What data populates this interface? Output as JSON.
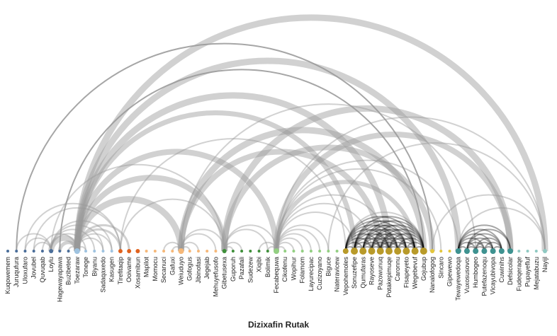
{
  "title": "Dizixafin Rutak",
  "colors": {
    "arc_heavy": "#000000",
    "arc_light": "#999999",
    "groups": {
      "g1": "#4a6d99",
      "g2": "#9fc3e0",
      "g3": "#e0621e",
      "g4": "#f6b879",
      "g5": "#3f8f3a",
      "g6": "#93cf82",
      "g7": "#b89a2a",
      "g8": "#e3c63c",
      "g9": "#3e9290",
      "g10": "#8fc9c2"
    }
  },
  "nodes": [
    {
      "label": "Kuqowemem",
      "group": "g1",
      "size": 2
    },
    {
      "label": "Juruqufura",
      "group": "g1",
      "size": 2
    },
    {
      "label": "Uloxufaro",
      "group": "g1",
      "size": 2
    },
    {
      "label": "Jovubel",
      "group": "g1",
      "size": 2
    },
    {
      "label": "Quvuqab",
      "group": "g1",
      "size": 2
    },
    {
      "label": "Loylu",
      "group": "g1",
      "size": 3
    },
    {
      "label": "Hagewayapawa",
      "group": "g1",
      "size": 2
    },
    {
      "label": "Buzibeted",
      "group": "g1",
      "size": 2
    },
    {
      "label": "Toezaraw",
      "group": "g2",
      "size": 4
    },
    {
      "label": "Tonege",
      "group": "g2",
      "size": 2
    },
    {
      "label": "Biyanu",
      "group": "g2",
      "size": 2
    },
    {
      "label": "Sadaqaxedo",
      "group": "g2",
      "size": 2
    },
    {
      "label": "Kasugen",
      "group": "g2",
      "size": 2
    },
    {
      "label": "Tirefitaqip",
      "group": "g3",
      "size": 3
    },
    {
      "label": "Ooivame",
      "group": "g3",
      "size": 3
    },
    {
      "label": "Xosamibun",
      "group": "g3",
      "size": 3
    },
    {
      "label": "Mapilot",
      "group": "g4",
      "size": 2
    },
    {
      "label": "Momocu",
      "group": "g4",
      "size": 2
    },
    {
      "label": "Secanuci",
      "group": "g4",
      "size": 2
    },
    {
      "label": "Gafuxi",
      "group": "g4",
      "size": 2
    },
    {
      "label": "Weiuduyo",
      "group": "g4",
      "size": 4
    },
    {
      "label": "Gofogus",
      "group": "g4",
      "size": 2
    },
    {
      "label": "Jibinofasi",
      "group": "g4",
      "size": 2
    },
    {
      "label": "Jegejab",
      "group": "g4",
      "size": 2
    },
    {
      "label": "Mehuyefusofo",
      "group": "g4",
      "size": 2
    },
    {
      "label": "Gibetusexa",
      "group": "g5",
      "size": 3
    },
    {
      "label": "Guporuh",
      "group": "g5",
      "size": 2
    },
    {
      "label": "Pazafali",
      "group": "g5",
      "size": 2
    },
    {
      "label": "Sudezew",
      "group": "g5",
      "size": 2
    },
    {
      "label": "Xiqibi",
      "group": "g5",
      "size": 2
    },
    {
      "label": "Bolimik",
      "group": "g5",
      "size": 2
    },
    {
      "label": "Fecabequwa",
      "group": "g6",
      "size": 4
    },
    {
      "label": "Cikofenu",
      "group": "g6",
      "size": 2
    },
    {
      "label": "Wopihur",
      "group": "g6",
      "size": 2
    },
    {
      "label": "Folamom",
      "group": "g6",
      "size": 2
    },
    {
      "label": "Layurecipac",
      "group": "g6",
      "size": 2
    },
    {
      "label": "Cuzizoyano",
      "group": "g6",
      "size": 2
    },
    {
      "label": "Biguce",
      "group": "g6",
      "size": 2
    },
    {
      "label": "Nateravicew",
      "group": "g6",
      "size": 2
    },
    {
      "label": "Vepohemoles",
      "group": "g7",
      "size": 4
    },
    {
      "label": "Sonuzefipe",
      "group": "g7",
      "size": 5
    },
    {
      "label": "Qumufaras",
      "group": "g7",
      "size": 5
    },
    {
      "label": "Rayoseve",
      "group": "g7",
      "size": 5
    },
    {
      "label": "Pazowunuq",
      "group": "g7",
      "size": 5
    },
    {
      "label": "Potakepimuqe",
      "group": "g7",
      "size": 5
    },
    {
      "label": "Caronnu",
      "group": "g7",
      "size": 5
    },
    {
      "label": "Fisapeyeto",
      "group": "g7",
      "size": 5
    },
    {
      "label": "Wegebevuf",
      "group": "g7",
      "size": 5
    },
    {
      "label": "Gojubup",
      "group": "g7",
      "size": 5
    },
    {
      "label": "Nanalofogog",
      "group": "g8",
      "size": 3
    },
    {
      "label": "Sincaro",
      "group": "g8",
      "size": 2
    },
    {
      "label": "Gipewewo",
      "group": "g8",
      "size": 2
    },
    {
      "label": "Tewayewedoqa",
      "group": "g9",
      "size": 4
    },
    {
      "label": "Vuxosusovor",
      "group": "g9",
      "size": 4
    },
    {
      "label": "Humbogeo",
      "group": "g9",
      "size": 4
    },
    {
      "label": "Putefazenoqu",
      "group": "g9",
      "size": 4
    },
    {
      "label": "Vicayubivopa",
      "group": "g9",
      "size": 4
    },
    {
      "label": "Cuwinihs",
      "group": "g9",
      "size": 4
    },
    {
      "label": "Defsicolar",
      "group": "g9",
      "size": 4
    },
    {
      "label": "Fudeqeraqe",
      "group": "g10",
      "size": 2
    },
    {
      "label": "Pupayefluf",
      "group": "g10",
      "size": 2
    },
    {
      "label": "Mejatabuzu",
      "group": "g10",
      "size": 2
    },
    {
      "label": "Nayijl",
      "group": "g10",
      "size": 3
    }
  ],
  "links": [
    {
      "source": 1,
      "target": 49,
      "value": 2,
      "tone": "heavy"
    },
    {
      "source": 6,
      "target": 48,
      "value": 2,
      "tone": "heavy"
    },
    {
      "source": 8,
      "target": 62,
      "value": 9,
      "tone": "light"
    },
    {
      "source": 8,
      "target": 52,
      "value": 9,
      "tone": "light"
    },
    {
      "source": 8,
      "target": 44,
      "value": 9,
      "tone": "light"
    },
    {
      "source": 8,
      "target": 40,
      "value": 7,
      "tone": "light"
    },
    {
      "source": 8,
      "target": 31,
      "value": 8,
      "tone": "light"
    },
    {
      "source": 8,
      "target": 25,
      "value": 8,
      "tone": "light"
    },
    {
      "source": 8,
      "target": 20,
      "value": 9,
      "tone": "light"
    },
    {
      "source": 8,
      "target": 13,
      "value": 3,
      "tone": "light"
    },
    {
      "source": 8,
      "target": 14,
      "value": 3,
      "tone": "light"
    },
    {
      "source": 6,
      "target": 8,
      "value": 5,
      "tone": "light"
    },
    {
      "source": 5,
      "target": 8,
      "value": 8,
      "tone": "light"
    },
    {
      "source": 4,
      "target": 8,
      "value": 2,
      "tone": "light"
    },
    {
      "source": 2,
      "target": 5,
      "value": 2,
      "tone": "light"
    },
    {
      "source": 3,
      "target": 5,
      "value": 2,
      "tone": "light"
    },
    {
      "source": 1,
      "target": 5,
      "value": 2,
      "tone": "light"
    },
    {
      "source": 5,
      "target": 9,
      "value": 2,
      "tone": "light"
    },
    {
      "source": 5,
      "target": 10,
      "value": 2,
      "tone": "light"
    },
    {
      "source": 5,
      "target": 11,
      "value": 2,
      "tone": "light"
    },
    {
      "source": 5,
      "target": 12,
      "value": 2,
      "tone": "light"
    },
    {
      "source": 5,
      "target": 25,
      "value": 2,
      "tone": "light"
    },
    {
      "source": 7,
      "target": 8,
      "value": 2,
      "tone": "light"
    },
    {
      "source": 8,
      "target": 9,
      "value": 2,
      "tone": "light"
    },
    {
      "source": 8,
      "target": 11,
      "value": 2,
      "tone": "light"
    },
    {
      "source": 8,
      "target": 12,
      "value": 2,
      "tone": "light"
    },
    {
      "source": 13,
      "target": 25,
      "value": 2,
      "tone": "light"
    },
    {
      "source": 13,
      "target": 39,
      "value": 2,
      "tone": "light"
    },
    {
      "source": 20,
      "target": 43,
      "value": 8,
      "tone": "light"
    },
    {
      "source": 20,
      "target": 48,
      "value": 9,
      "tone": "light"
    },
    {
      "source": 20,
      "target": 54,
      "value": 2,
      "tone": "light"
    },
    {
      "source": 18,
      "target": 20,
      "value": 2,
      "tone": "light"
    },
    {
      "source": 19,
      "target": 20,
      "value": 2,
      "tone": "light"
    },
    {
      "source": 20,
      "target": 21,
      "value": 2,
      "tone": "light"
    },
    {
      "source": 20,
      "target": 22,
      "value": 2,
      "tone": "light"
    },
    {
      "source": 20,
      "target": 24,
      "value": 2,
      "tone": "light"
    },
    {
      "source": 20,
      "target": 25,
      "value": 2,
      "tone": "light"
    },
    {
      "source": 25,
      "target": 49,
      "value": 8,
      "tone": "light"
    },
    {
      "source": 25,
      "target": 58,
      "value": 9,
      "tone": "light"
    },
    {
      "source": 25,
      "target": 26,
      "value": 2,
      "tone": "light"
    },
    {
      "source": 25,
      "target": 27,
      "value": 2,
      "tone": "light"
    },
    {
      "source": 25,
      "target": 30,
      "value": 2,
      "tone": "light"
    },
    {
      "source": 25,
      "target": 31,
      "value": 2,
      "tone": "light"
    },
    {
      "source": 31,
      "target": 58,
      "value": 8,
      "tone": "light"
    },
    {
      "source": 31,
      "target": 47,
      "value": 6,
      "tone": "light"
    },
    {
      "source": 31,
      "target": 52,
      "value": 2,
      "tone": "light"
    },
    {
      "source": 31,
      "target": 62,
      "value": 2,
      "tone": "light"
    },
    {
      "source": 31,
      "target": 50,
      "value": 2,
      "tone": "light"
    },
    {
      "source": 29,
      "target": 31,
      "value": 2,
      "tone": "light"
    },
    {
      "source": 30,
      "target": 31,
      "value": 2,
      "tone": "light"
    },
    {
      "source": 31,
      "target": 32,
      "value": 2,
      "tone": "light"
    },
    {
      "source": 31,
      "target": 33,
      "value": 2,
      "tone": "light"
    },
    {
      "source": 31,
      "target": 34,
      "value": 2,
      "tone": "light"
    },
    {
      "source": 31,
      "target": 35,
      "value": 2,
      "tone": "light"
    },
    {
      "source": 31,
      "target": 36,
      "value": 2,
      "tone": "light"
    },
    {
      "source": 31,
      "target": 37,
      "value": 2,
      "tone": "light"
    },
    {
      "source": 31,
      "target": 40,
      "value": 2,
      "tone": "light"
    },
    {
      "source": 31,
      "target": 42,
      "value": 2,
      "tone": "light"
    },
    {
      "source": 31,
      "target": 44,
      "value": 2,
      "tone": "light"
    },
    {
      "source": 37,
      "target": 62,
      "value": 2,
      "tone": "light"
    },
    {
      "source": 39,
      "target": 48,
      "value": 2,
      "tone": "light"
    },
    {
      "source": 49,
      "target": 62,
      "value": 2,
      "tone": "light"
    },
    {
      "source": 52,
      "target": 62,
      "value": 2,
      "tone": "light"
    },
    {
      "source": 2,
      "target": 13,
      "value": 2,
      "tone": "light"
    },
    {
      "source": 3,
      "target": 13,
      "value": 2,
      "tone": "light"
    },
    {
      "source": 39,
      "target": 40,
      "value": 2,
      "tone": "heavy"
    },
    {
      "source": 39,
      "target": 41,
      "value": 2,
      "tone": "heavy"
    },
    {
      "source": 39,
      "target": 42,
      "value": 2,
      "tone": "heavy"
    },
    {
      "source": 39,
      "target": 43,
      "value": 2,
      "tone": "heavy"
    },
    {
      "source": 39,
      "target": 44,
      "value": 2,
      "tone": "heavy"
    },
    {
      "source": 39,
      "target": 45,
      "value": 2,
      "tone": "heavy"
    },
    {
      "source": 39,
      "target": 46,
      "value": 2,
      "tone": "heavy"
    },
    {
      "source": 39,
      "target": 47,
      "value": 2,
      "tone": "heavy"
    },
    {
      "source": 40,
      "target": 41,
      "value": 2,
      "tone": "heavy"
    },
    {
      "source": 40,
      "target": 42,
      "value": 2,
      "tone": "heavy"
    },
    {
      "source": 40,
      "target": 43,
      "value": 2,
      "tone": "heavy"
    },
    {
      "source": 40,
      "target": 44,
      "value": 2,
      "tone": "heavy"
    },
    {
      "source": 40,
      "target": 45,
      "value": 2,
      "tone": "heavy"
    },
    {
      "source": 40,
      "target": 46,
      "value": 2,
      "tone": "heavy"
    },
    {
      "source": 40,
      "target": 47,
      "value": 2,
      "tone": "heavy"
    },
    {
      "source": 40,
      "target": 48,
      "value": 2,
      "tone": "heavy"
    },
    {
      "source": 41,
      "target": 42,
      "value": 2,
      "tone": "heavy"
    },
    {
      "source": 41,
      "target": 43,
      "value": 2,
      "tone": "heavy"
    },
    {
      "source": 41,
      "target": 44,
      "value": 2,
      "tone": "heavy"
    },
    {
      "source": 41,
      "target": 45,
      "value": 2,
      "tone": "heavy"
    },
    {
      "source": 41,
      "target": 46,
      "value": 2,
      "tone": "heavy"
    },
    {
      "source": 41,
      "target": 47,
      "value": 2,
      "tone": "heavy"
    },
    {
      "source": 41,
      "target": 48,
      "value": 2,
      "tone": "heavy"
    },
    {
      "source": 42,
      "target": 43,
      "value": 2,
      "tone": "heavy"
    },
    {
      "source": 42,
      "target": 44,
      "value": 2,
      "tone": "heavy"
    },
    {
      "source": 42,
      "target": 45,
      "value": 2,
      "tone": "heavy"
    },
    {
      "source": 42,
      "target": 46,
      "value": 2,
      "tone": "heavy"
    },
    {
      "source": 42,
      "target": 47,
      "value": 2,
      "tone": "heavy"
    },
    {
      "source": 42,
      "target": 48,
      "value": 2,
      "tone": "heavy"
    },
    {
      "source": 43,
      "target": 44,
      "value": 2,
      "tone": "heavy"
    },
    {
      "source": 43,
      "target": 45,
      "value": 2,
      "tone": "heavy"
    },
    {
      "source": 43,
      "target": 46,
      "value": 2,
      "tone": "heavy"
    },
    {
      "source": 43,
      "target": 47,
      "value": 2,
      "tone": "heavy"
    },
    {
      "source": 43,
      "target": 48,
      "value": 2,
      "tone": "heavy"
    },
    {
      "source": 44,
      "target": 45,
      "value": 2,
      "tone": "heavy"
    },
    {
      "source": 44,
      "target": 46,
      "value": 2,
      "tone": "heavy"
    },
    {
      "source": 44,
      "target": 47,
      "value": 2,
      "tone": "heavy"
    },
    {
      "source": 44,
      "target": 48,
      "value": 2,
      "tone": "heavy"
    },
    {
      "source": 45,
      "target": 46,
      "value": 2,
      "tone": "heavy"
    },
    {
      "source": 45,
      "target": 47,
      "value": 2,
      "tone": "heavy"
    },
    {
      "source": 45,
      "target": 48,
      "value": 2,
      "tone": "heavy"
    },
    {
      "source": 46,
      "target": 47,
      "value": 2,
      "tone": "heavy"
    },
    {
      "source": 46,
      "target": 48,
      "value": 2,
      "tone": "heavy"
    },
    {
      "source": 47,
      "target": 48,
      "value": 2,
      "tone": "heavy"
    },
    {
      "source": 52,
      "target": 53,
      "value": 2,
      "tone": "heavy"
    },
    {
      "source": 52,
      "target": 54,
      "value": 2,
      "tone": "heavy"
    },
    {
      "source": 52,
      "target": 55,
      "value": 2,
      "tone": "heavy"
    },
    {
      "source": 52,
      "target": 56,
      "value": 2,
      "tone": "heavy"
    },
    {
      "source": 52,
      "target": 57,
      "value": 2,
      "tone": "heavy"
    },
    {
      "source": 52,
      "target": 58,
      "value": 2,
      "tone": "heavy"
    },
    {
      "source": 53,
      "target": 54,
      "value": 2,
      "tone": "heavy"
    },
    {
      "source": 53,
      "target": 55,
      "value": 2,
      "tone": "heavy"
    },
    {
      "source": 53,
      "target": 56,
      "value": 2,
      "tone": "heavy"
    },
    {
      "source": 53,
      "target": 57,
      "value": 2,
      "tone": "heavy"
    },
    {
      "source": 53,
      "target": 58,
      "value": 2,
      "tone": "heavy"
    },
    {
      "source": 54,
      "target": 55,
      "value": 2,
      "tone": "heavy"
    },
    {
      "source": 54,
      "target": 56,
      "value": 2,
      "tone": "heavy"
    },
    {
      "source": 54,
      "target": 57,
      "value": 2,
      "tone": "heavy"
    },
    {
      "source": 55,
      "target": 56,
      "value": 2,
      "tone": "heavy"
    },
    {
      "source": 55,
      "target": 57,
      "value": 2,
      "tone": "heavy"
    },
    {
      "source": 56,
      "target": 57,
      "value": 2,
      "tone": "heavy"
    }
  ]
}
